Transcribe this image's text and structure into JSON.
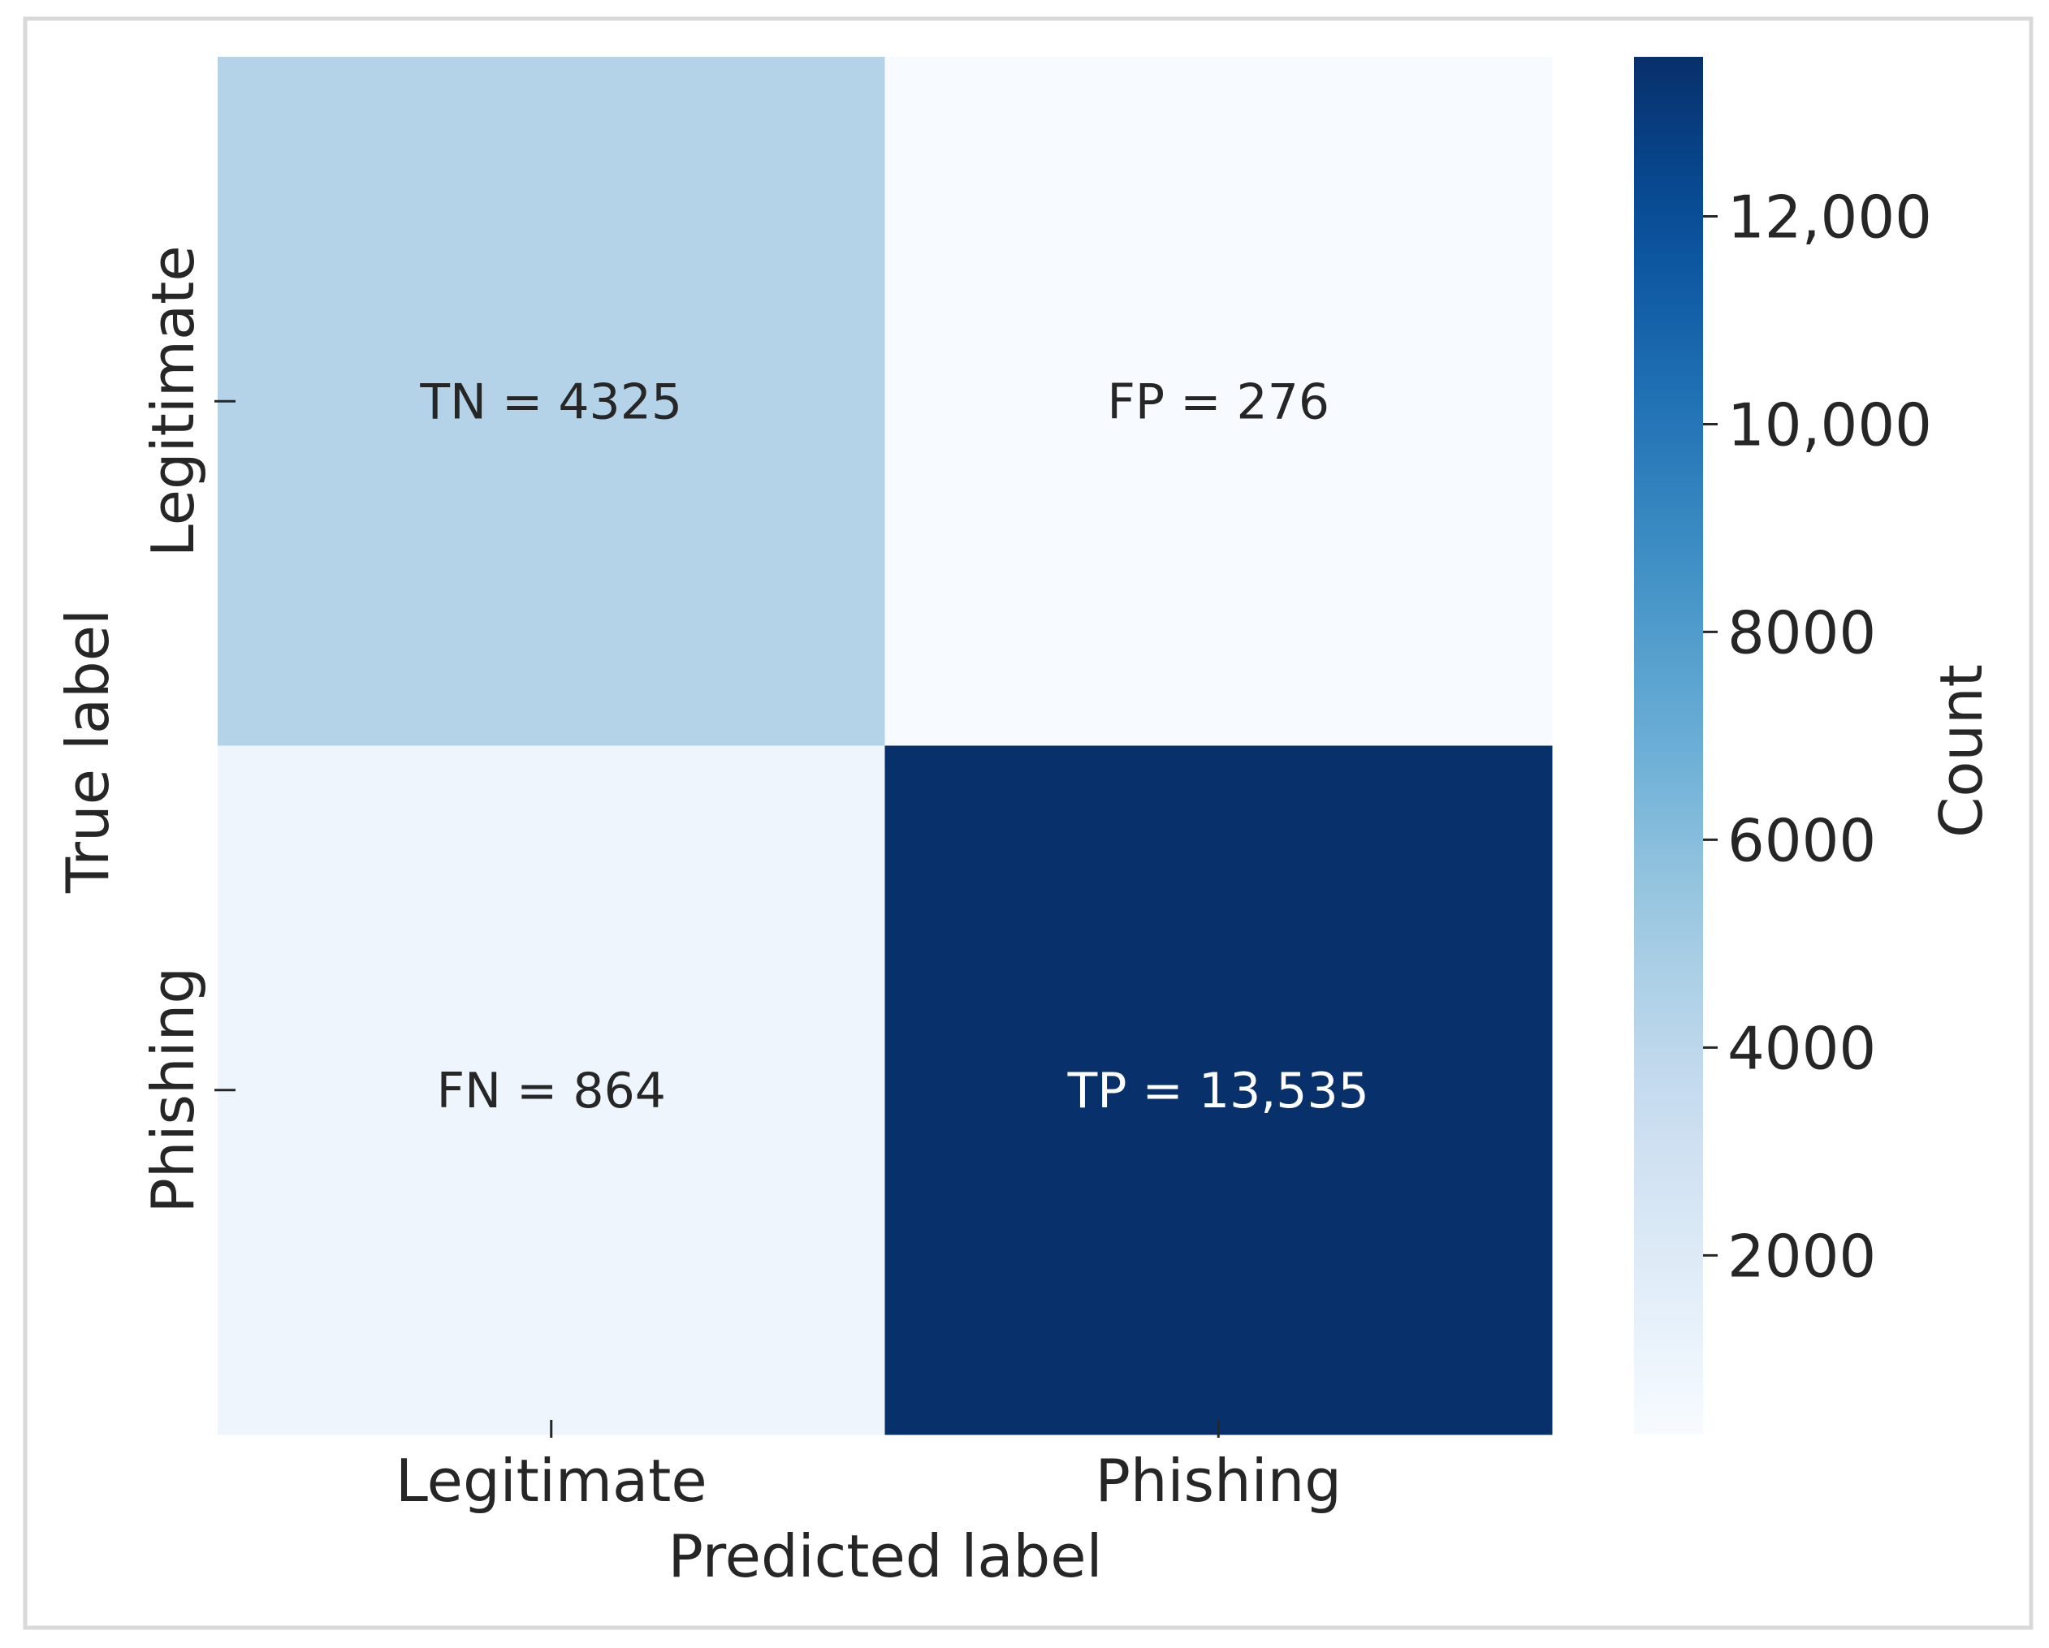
{
  "chart_data": {
    "type": "heatmap",
    "title": "",
    "xlabel": "Predicted label",
    "ylabel": "True label",
    "x_categories": [
      "Legitimate",
      "Phishing"
    ],
    "y_categories": [
      "Legitimate",
      "Phishing"
    ],
    "values": [
      [
        4325,
        276
      ],
      [
        864,
        13535
      ]
    ],
    "cell_labels": [
      [
        "TN = 4325",
        "FP = 276"
      ],
      [
        "FN = 864",
        "TP = 13,535"
      ]
    ],
    "colorbar": {
      "label": "Count",
      "colormap": "Blues",
      "range": [
        276,
        13535
      ],
      "ticks": [
        2000,
        4000,
        6000,
        8000,
        10000,
        12000
      ],
      "tick_labels": [
        "2000",
        "4000",
        "6000",
        "8000",
        "10,000",
        "12,000"
      ]
    },
    "grid": false,
    "legend": "colorbar-right"
  }
}
